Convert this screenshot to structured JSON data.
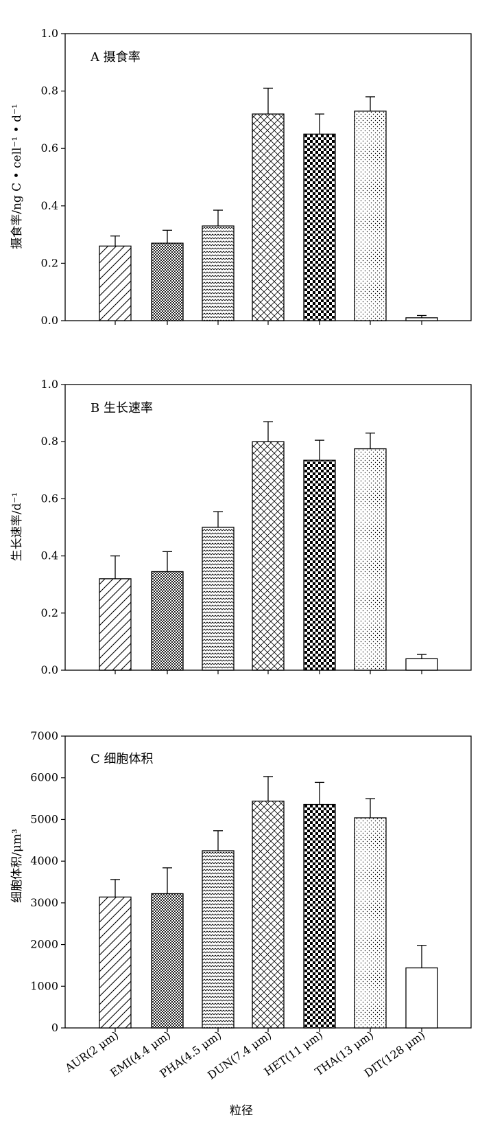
{
  "x_axis_title": "粒径",
  "categories": [
    "AUR(2 μm)",
    "EMI(4.4 μm)",
    "PHA(4.5 μm)",
    "DUN(7.4 μm)",
    "HET(11 μm)",
    "THA(13 μm)",
    "DIT(128 μm)"
  ],
  "chart_data": [
    {
      "type": "bar",
      "title": "A 摄食率",
      "ylabel": "摄食率/ng C • cell⁻¹ • d⁻¹",
      "ylim": [
        0,
        1.0
      ],
      "yticks": [
        "0.0",
        "0.2",
        "0.4",
        "0.6",
        "0.8",
        "1.0"
      ],
      "categories": [
        "AUR(2 μm)",
        "EMI(4.4 μm)",
        "PHA(4.5 μm)",
        "DUN(7.4 μm)",
        "HET(11 μm)",
        "THA(13 μm)",
        "DIT(128 μm)"
      ],
      "values": [
        0.26,
        0.27,
        0.33,
        0.72,
        0.65,
        0.73,
        0.01
      ],
      "errors": [
        0.035,
        0.045,
        0.055,
        0.09,
        0.07,
        0.05,
        0.008
      ]
    },
    {
      "type": "bar",
      "title": "B 生长速率",
      "ylabel": "生长速率/d⁻¹",
      "ylim": [
        0,
        1.0
      ],
      "yticks": [
        "0.0",
        "0.2",
        "0.4",
        "0.6",
        "0.8",
        "1.0"
      ],
      "categories": [
        "AUR(2 μm)",
        "EMI(4.4 μm)",
        "PHA(4.5 μm)",
        "DUN(7.4 μm)",
        "HET(11 μm)",
        "THA(13 μm)",
        "DIT(128 μm)"
      ],
      "values": [
        0.32,
        0.345,
        0.5,
        0.8,
        0.735,
        0.775,
        0.04
      ],
      "errors": [
        0.08,
        0.07,
        0.055,
        0.07,
        0.07,
        0.055,
        0.015
      ]
    },
    {
      "type": "bar",
      "title": "C 细胞体积",
      "ylabel": "细胞体积/μm³",
      "ylim": [
        0,
        7000
      ],
      "yticks": [
        "0",
        "1000",
        "2000",
        "3000",
        "4000",
        "5000",
        "6000",
        "7000"
      ],
      "categories": [
        "AUR(2 μm)",
        "EMI(4.4 μm)",
        "PHA(4.5 μm)",
        "DUN(7.4 μm)",
        "HET(11 μm)",
        "THA(13 μm)",
        "DIT(128 μm)"
      ],
      "values": [
        3140,
        3220,
        4250,
        5440,
        5360,
        5040,
        1440
      ],
      "errors": [
        420,
        620,
        480,
        590,
        530,
        460,
        540
      ]
    }
  ]
}
